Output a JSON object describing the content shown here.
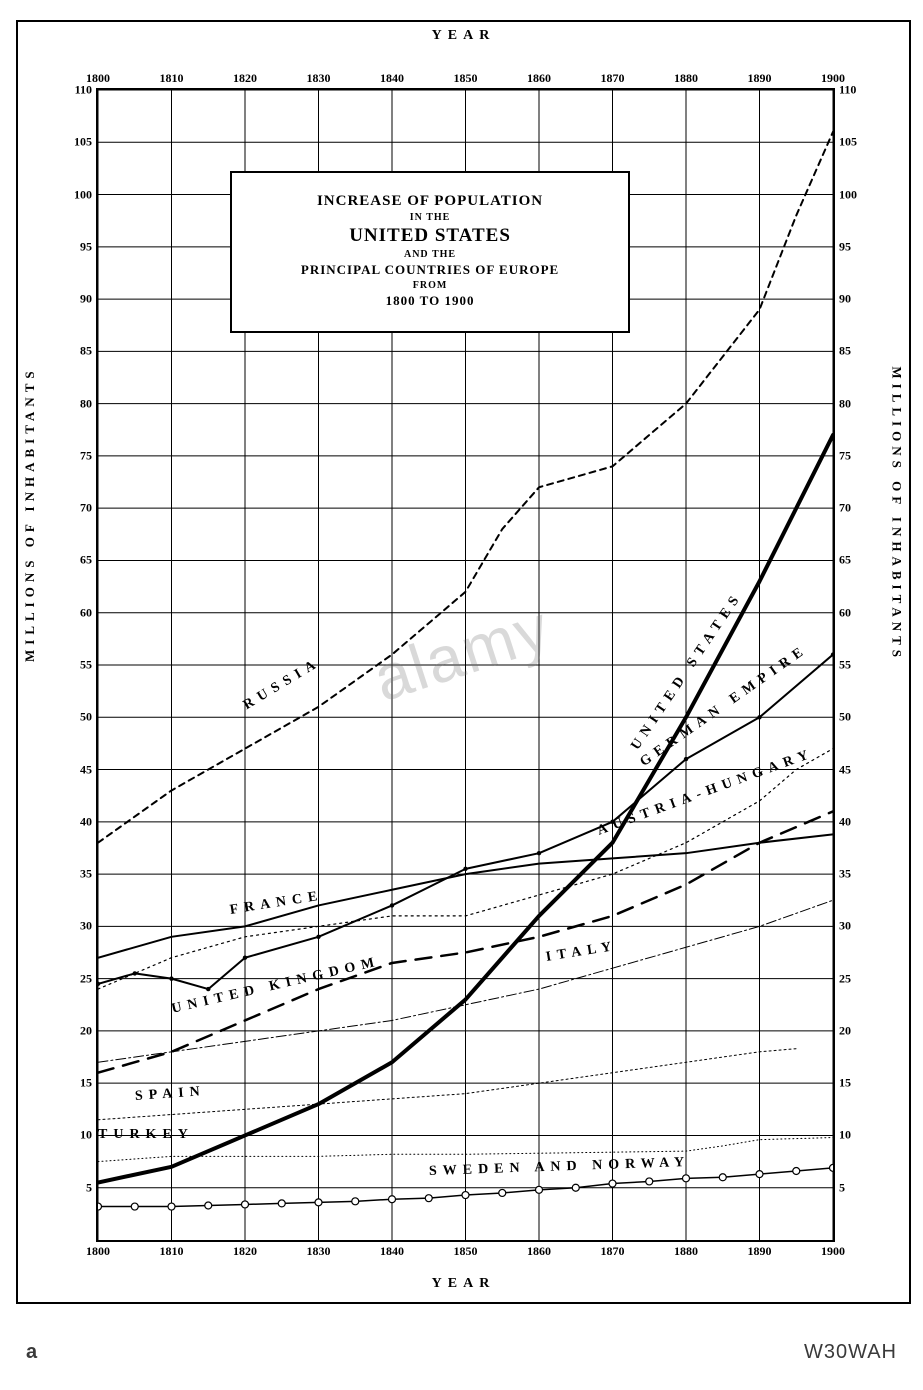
{
  "watermark_text": "alamy",
  "footer_left": "a",
  "footer_right": "W30WAH",
  "axis_titles": {
    "top": "YEAR",
    "bottom": "YEAR",
    "left": "MILLIONS OF INHABITANTS",
    "right": "MILLIONS OF INHABITANTS"
  },
  "title_box": {
    "line1": "INCREASE OF POPULATION",
    "line2_small": "IN THE",
    "line3_big": "UNITED STATES",
    "line4_small": "AND THE",
    "line5_med": "PRINCIPAL COUNTRIES OF EUROPE",
    "line6_small": "FROM",
    "line7_med": "1800 TO 1900",
    "left_pct": 18,
    "top_pct": 7,
    "width_pct": 50,
    "background_color": "#ffffff",
    "border_color": "#000000"
  },
  "chart": {
    "type": "line",
    "background_color": "#ffffff",
    "grid_color": "#000000",
    "grid_major_width": 1,
    "xlim": [
      1800,
      1900
    ],
    "ylim": [
      0,
      110
    ],
    "xticks": [
      1800,
      1810,
      1820,
      1830,
      1840,
      1850,
      1860,
      1870,
      1880,
      1890,
      1900
    ],
    "yticks": [
      5,
      10,
      15,
      20,
      25,
      30,
      35,
      40,
      45,
      50,
      55,
      60,
      65,
      70,
      75,
      80,
      85,
      90,
      95,
      100,
      105,
      110
    ],
    "xtick_labels": [
      "1800",
      "1810",
      "1820",
      "1830",
      "1840",
      "1850",
      "1860",
      "1870",
      "1880",
      "1890",
      "1900"
    ],
    "ytick_labels": [
      "5",
      "10",
      "15",
      "20",
      "25",
      "30",
      "35",
      "40",
      "45",
      "50",
      "55",
      "60",
      "65",
      "70",
      "75",
      "80",
      "85",
      "90",
      "95",
      "100",
      "105",
      "110"
    ],
    "tick_fontsize": 12,
    "series": {
      "russia": {
        "label": "RUSSIA",
        "stroke": "#000000",
        "stroke_width": 2,
        "dash": "6,5",
        "marker": "none",
        "x": [
          1800,
          1810,
          1820,
          1830,
          1840,
          1850,
          1855,
          1860,
          1870,
          1880,
          1890,
          1895,
          1900
        ],
        "y": [
          38,
          43,
          47,
          51,
          56,
          62,
          68,
          72,
          74,
          80,
          89,
          98,
          106
        ],
        "label_x": 1820,
        "label_y": 51,
        "label_angle": -31
      },
      "united_states": {
        "label": "UNITED STATES",
        "stroke": "#000000",
        "stroke_width": 4,
        "dash": "none",
        "marker": "none",
        "x": [
          1800,
          1810,
          1820,
          1830,
          1840,
          1850,
          1860,
          1870,
          1880,
          1890,
          1900
        ],
        "y": [
          5.5,
          7,
          10,
          13,
          17,
          23,
          31,
          38,
          50,
          63,
          77
        ],
        "label_x": 1873,
        "label_y": 47,
        "label_angle": -56
      },
      "german_empire": {
        "label": "GERMAN EMPIRE",
        "stroke": "#000000",
        "stroke_width": 2,
        "dash": "none",
        "marker": "dot",
        "x": [
          1800,
          1805,
          1810,
          1815,
          1820,
          1830,
          1840,
          1850,
          1860,
          1870,
          1880,
          1890,
          1900
        ],
        "y": [
          24.5,
          25.5,
          25,
          24,
          27,
          29,
          32,
          35.5,
          37,
          40,
          46,
          50,
          56
        ],
        "label_x": 1874,
        "label_y": 45.5,
        "label_angle": -35
      },
      "austria_hungary": {
        "label": "AUSTRIA-HUNGARY",
        "stroke": "#000000",
        "stroke_width": 1.2,
        "dash": "2,4",
        "marker": "none",
        "x": [
          1800,
          1810,
          1820,
          1830,
          1840,
          1850,
          1860,
          1870,
          1880,
          1890,
          1895,
          1900
        ],
        "y": [
          24,
          27,
          29,
          30,
          31,
          31,
          33,
          35,
          38,
          42,
          45,
          47
        ],
        "label_x": 1868,
        "label_y": 39,
        "label_angle": -20
      },
      "france": {
        "label": "FRANCE",
        "stroke": "#000000",
        "stroke_width": 2,
        "dash": "none",
        "marker": "none",
        "x": [
          1800,
          1810,
          1820,
          1830,
          1840,
          1850,
          1860,
          1870,
          1880,
          1890,
          1900
        ],
        "y": [
          27,
          29,
          30,
          32,
          33.5,
          35,
          36,
          36.5,
          37,
          38,
          38.8
        ],
        "label_x": 1818,
        "label_y": 31.5,
        "label_angle": -9
      },
      "united_kingdom": {
        "label": "UNITED KINGDOM",
        "stroke": "#000000",
        "stroke_width": 2.5,
        "dash": "16,10",
        "marker": "none",
        "x": [
          1800,
          1810,
          1820,
          1830,
          1840,
          1850,
          1860,
          1870,
          1880,
          1890,
          1900
        ],
        "y": [
          16,
          18,
          21,
          24,
          26.5,
          27.5,
          29,
          31,
          34,
          38,
          41
        ],
        "label_x": 1810,
        "label_y": 22,
        "label_angle": -13
      },
      "italy": {
        "label": "ITALY",
        "stroke": "#000000",
        "stroke_width": 1,
        "dash": "10,3,2,3",
        "marker": "none",
        "x": [
          1800,
          1810,
          1820,
          1830,
          1840,
          1850,
          1860,
          1870,
          1880,
          1890,
          1900
        ],
        "y": [
          17,
          18,
          19,
          20,
          21,
          22.5,
          24,
          26,
          28,
          30,
          32.5
        ],
        "label_x": 1861,
        "label_y": 27,
        "label_angle": -9
      },
      "spain": {
        "label": "SPAIN",
        "stroke": "#000000",
        "stroke_width": 1,
        "dash": "2,3",
        "marker": "none",
        "x": [
          1800,
          1810,
          1820,
          1830,
          1840,
          1850,
          1860,
          1870,
          1880,
          1890,
          1895
        ],
        "y": [
          11.5,
          12,
          12.5,
          13,
          13.5,
          14,
          15,
          16,
          17,
          18,
          18.3
        ],
        "label_x": 1805,
        "label_y": 13.7,
        "label_angle": -4
      },
      "turkey": {
        "label": "TURKEY",
        "stroke": "#000000",
        "stroke_width": 1,
        "dash": "1,3",
        "marker": "none",
        "x": [
          1800,
          1810,
          1820,
          1830,
          1840,
          1850,
          1860,
          1870,
          1880,
          1885,
          1890,
          1895,
          1900
        ],
        "y": [
          7.5,
          8,
          8,
          8,
          8.2,
          8.2,
          8.3,
          8.4,
          8.5,
          9,
          9.6,
          9.7,
          9.8
        ],
        "label_x": 1800,
        "label_y": 10,
        "label_angle": 0
      },
      "sweden_norway": {
        "label": "SWEDEN AND NORWAY",
        "stroke": "#000000",
        "stroke_width": 1.5,
        "dash": "none",
        "marker": "circle",
        "x": [
          1800,
          1805,
          1810,
          1815,
          1820,
          1825,
          1830,
          1835,
          1840,
          1845,
          1850,
          1855,
          1860,
          1865,
          1870,
          1875,
          1880,
          1885,
          1890,
          1895,
          1900
        ],
        "y": [
          3.2,
          3.2,
          3.2,
          3.3,
          3.4,
          3.5,
          3.6,
          3.7,
          3.9,
          4,
          4.3,
          4.5,
          4.8,
          5,
          5.4,
          5.6,
          5.9,
          6,
          6.3,
          6.6,
          6.9
        ],
        "label_x": 1845,
        "label_y": 6.5,
        "label_angle": -2
      }
    }
  }
}
